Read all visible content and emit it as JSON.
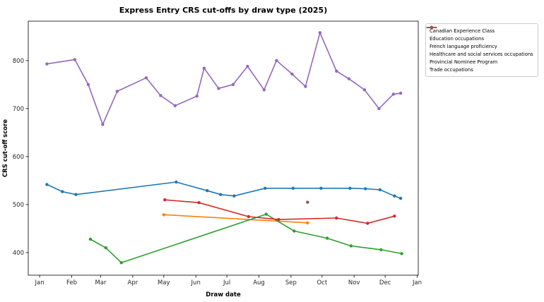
{
  "chart_data": {
    "type": "line",
    "title": "Express Entry CRS cut-offs by draw type (2025)",
    "xlabel": "Draw date",
    "ylabel": "CRS cut-off score",
    "x_tick_labels": [
      "Jan",
      "Feb",
      "Mar",
      "Apr",
      "May",
      "Jun",
      "Jul",
      "Aug",
      "Sep",
      "Oct",
      "Nov",
      "Dec",
      "Jan"
    ],
    "y_ticks": [
      400,
      500,
      600,
      700,
      800
    ],
    "ylim": [
      353,
      882
    ],
    "grid": false,
    "legend_position": "upper-right-outside-axes",
    "series": [
      {
        "name": "Canadian Experience Class",
        "color": "#1f77b4",
        "points": [
          [
            "2025-01-08",
            542
          ],
          [
            "2025-01-23",
            527
          ],
          [
            "2025-02-05",
            521
          ],
          [
            "2025-05-13",
            547
          ],
          [
            "2025-06-12",
            529
          ],
          [
            "2025-06-25",
            521
          ],
          [
            "2025-07-08",
            518
          ],
          [
            "2025-08-07",
            534
          ],
          [
            "2025-09-03",
            534
          ],
          [
            "2025-09-30",
            534
          ],
          [
            "2025-10-28",
            534
          ],
          [
            "2025-11-12",
            533
          ],
          [
            "2025-11-26",
            531
          ],
          [
            "2025-12-10",
            518
          ],
          [
            "2025-12-16",
            513
          ]
        ]
      },
      {
        "name": "Education occupations",
        "color": "#ff7f0e",
        "points": [
          [
            "2025-05-01",
            479
          ],
          [
            "2025-09-17",
            462
          ]
        ]
      },
      {
        "name": "French language proficiency",
        "color": "#2ca02c",
        "points": [
          [
            "2025-02-19",
            428
          ],
          [
            "2025-03-06",
            410
          ],
          [
            "2025-03-21",
            379
          ],
          [
            "2025-08-08",
            480
          ],
          [
            "2025-09-04",
            445
          ],
          [
            "2025-10-06",
            430
          ],
          [
            "2025-10-29",
            414
          ],
          [
            "2025-11-27",
            406
          ],
          [
            "2025-12-17",
            398
          ]
        ]
      },
      {
        "name": "Healthcare and social services occupations",
        "color": "#d62728",
        "points": [
          [
            "2025-05-02",
            510
          ],
          [
            "2025-06-04",
            504
          ],
          [
            "2025-07-22",
            475
          ],
          [
            "2025-08-20",
            469
          ],
          [
            "2025-10-15",
            472
          ],
          [
            "2025-11-14",
            461
          ],
          [
            "2025-12-10",
            476
          ]
        ]
      },
      {
        "name": "Provincial Nominee Program",
        "color": "#9467bd",
        "points": [
          [
            "2025-01-08",
            793
          ],
          [
            "2025-02-04",
            802
          ],
          [
            "2025-02-17",
            750
          ],
          [
            "2025-03-03",
            667
          ],
          [
            "2025-03-17",
            736
          ],
          [
            "2025-04-14",
            764
          ],
          [
            "2025-04-28",
            727
          ],
          [
            "2025-05-12",
            706
          ],
          [
            "2025-06-02",
            726
          ],
          [
            "2025-06-09",
            784
          ],
          [
            "2025-06-23",
            742
          ],
          [
            "2025-07-07",
            750
          ],
          [
            "2025-07-21",
            788
          ],
          [
            "2025-08-06",
            739
          ],
          [
            "2025-08-18",
            800
          ],
          [
            "2025-09-02",
            772
          ],
          [
            "2025-09-15",
            746
          ],
          [
            "2025-09-29",
            858
          ],
          [
            "2025-10-15",
            778
          ],
          [
            "2025-10-27",
            762
          ],
          [
            "2025-11-11",
            739
          ],
          [
            "2025-11-25",
            700
          ],
          [
            "2025-12-09",
            730
          ],
          [
            "2025-12-16",
            732
          ]
        ]
      },
      {
        "name": "Trade occupations",
        "color": "#8c564b",
        "points": [
          [
            "2025-09-17",
            505
          ]
        ]
      }
    ]
  }
}
